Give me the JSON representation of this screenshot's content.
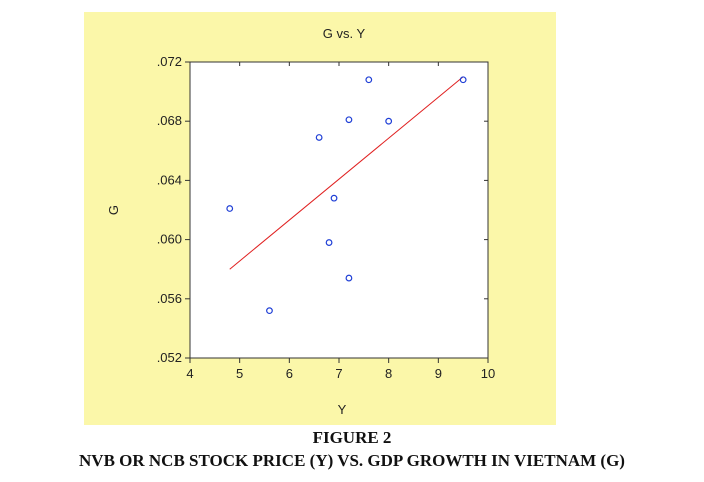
{
  "figure": {
    "label": "FIGURE 2",
    "caption": "NVB OR NCB STOCK PRICE (Y) VS. GDP GROWTH IN VIETNAM (G)"
  },
  "chart_data": {
    "type": "scatter",
    "title": "G vs. Y",
    "xlabel": "Y",
    "ylabel": "G",
    "xlim": [
      4,
      10
    ],
    "ylim": [
      0.052,
      0.072
    ],
    "xticks": [
      "4",
      "5",
      "6",
      "7",
      "8",
      "9",
      "10"
    ],
    "yticks": [
      ".052",
      ".056",
      ".060",
      ".064",
      ".068",
      ".072"
    ],
    "grid": false,
    "point_color": "#1f3fd6",
    "line_color": "#e02020",
    "points": [
      {
        "x": 4.8,
        "y": 0.0621
      },
      {
        "x": 5.6,
        "y": 0.0552
      },
      {
        "x": 6.6,
        "y": 0.0669
      },
      {
        "x": 6.8,
        "y": 0.0598
      },
      {
        "x": 6.9,
        "y": 0.0628
      },
      {
        "x": 7.2,
        "y": 0.0681
      },
      {
        "x": 7.2,
        "y": 0.0574
      },
      {
        "x": 7.6,
        "y": 0.0708
      },
      {
        "x": 8.0,
        "y": 0.068
      },
      {
        "x": 9.5,
        "y": 0.0708
      }
    ],
    "fit_line": {
      "x": [
        4.8,
        9.5
      ],
      "y": [
        0.058,
        0.071
      ]
    }
  }
}
